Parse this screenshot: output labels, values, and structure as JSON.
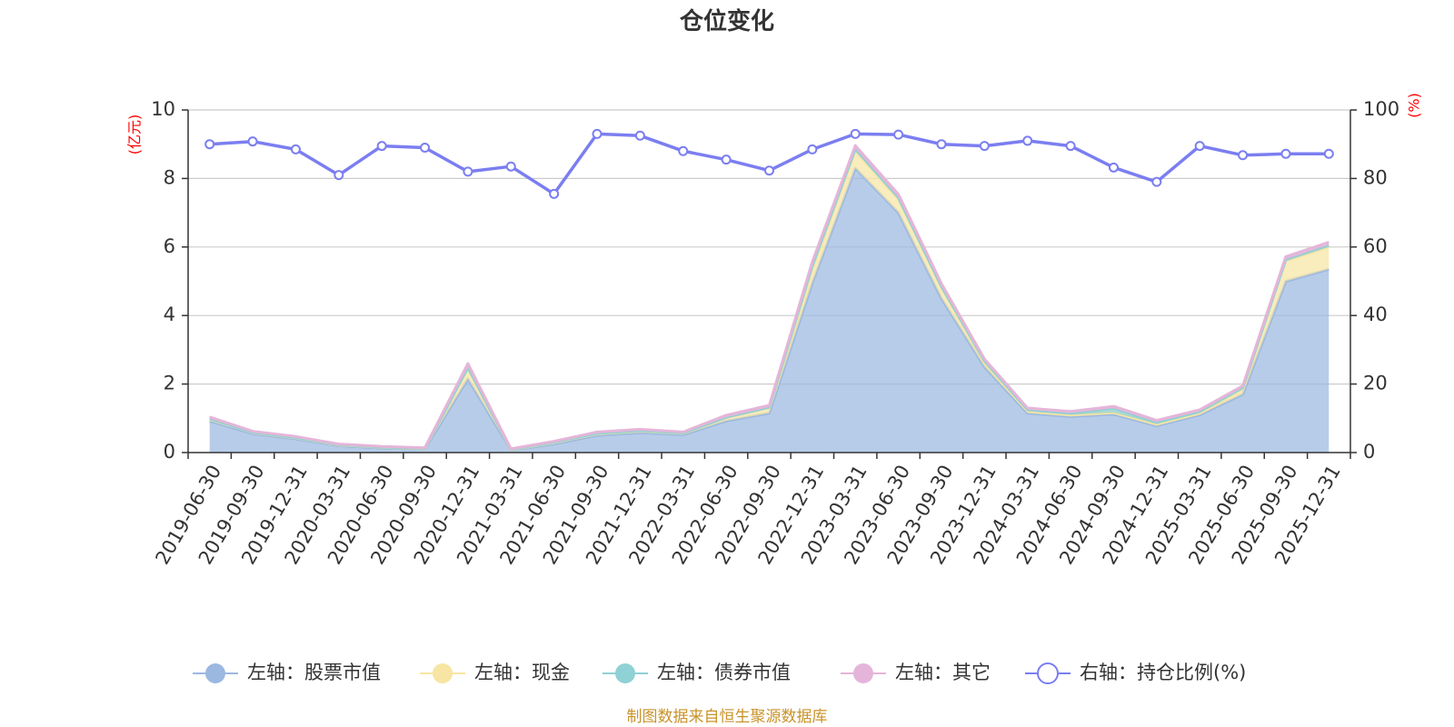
{
  "chart_data": {
    "type": "area",
    "title": "仓位变化",
    "left_axis_unit": "(亿元)",
    "right_axis_unit": "(%)",
    "ylim_left": [
      0,
      10
    ],
    "yticks_left": [
      0,
      2,
      4,
      6,
      8,
      10
    ],
    "ylim_right": [
      0,
      100
    ],
    "yticks_right": [
      0,
      20,
      40,
      60,
      80,
      100
    ],
    "grid": true,
    "legend_position": "bottom",
    "categories": [
      "2019-06-30",
      "2019-09-30",
      "2019-12-31",
      "2020-03-31",
      "2020-06-30",
      "2020-09-30",
      "2020-12-31",
      "2021-03-31",
      "2021-06-30",
      "2021-09-30",
      "2021-12-31",
      "2022-03-31",
      "2022-06-30",
      "2022-09-30",
      "2022-12-31",
      "2023-03-31",
      "2023-06-30",
      "2023-09-30",
      "2023-12-31",
      "2024-03-31",
      "2024-06-30",
      "2024-09-30",
      "2024-12-31",
      "2025-03-31",
      "2025-06-30",
      "2025-09-30",
      "2025-12-31"
    ],
    "series": [
      {
        "name": "左轴：股票市值",
        "axis": "left",
        "stack": true,
        "color": "#9bb8e0",
        "values": [
          0.92,
          0.55,
          0.4,
          0.2,
          0.13,
          0.1,
          2.15,
          0.07,
          0.25,
          0.5,
          0.58,
          0.52,
          0.92,
          1.15,
          4.95,
          8.3,
          7.0,
          4.5,
          2.5,
          1.15,
          1.05,
          1.12,
          0.78,
          1.1,
          1.7,
          5.0,
          5.35
        ]
      },
      {
        "name": "左轴：现金",
        "axis": "left",
        "stack": true,
        "color": "#f7e5a3",
        "values": [
          0.06,
          0.03,
          0.03,
          0.02,
          0.02,
          0.01,
          0.3,
          0.01,
          0.04,
          0.05,
          0.05,
          0.04,
          0.1,
          0.15,
          0.4,
          0.5,
          0.4,
          0.3,
          0.12,
          0.06,
          0.05,
          0.05,
          0.05,
          0.05,
          0.15,
          0.6,
          0.65
        ]
      },
      {
        "name": "左轴：债券市值",
        "axis": "left",
        "stack": true,
        "color": "#8fd1d4",
        "values": [
          0.01,
          0.01,
          0.01,
          0.01,
          0.01,
          0.01,
          0.03,
          0.01,
          0.01,
          0.01,
          0.01,
          0.01,
          0.01,
          0.02,
          0.1,
          0.06,
          0.04,
          0.05,
          0.05,
          0.04,
          0.05,
          0.12,
          0.06,
          0.05,
          0.04,
          0.03,
          0.05
        ]
      },
      {
        "name": "左轴：其它",
        "axis": "left",
        "stack": true,
        "color": "#e5b5d9",
        "values": [
          0.05,
          0.03,
          0.03,
          0.02,
          0.02,
          0.02,
          0.12,
          0.02,
          0.03,
          0.04,
          0.04,
          0.03,
          0.06,
          0.06,
          0.12,
          0.1,
          0.1,
          0.08,
          0.06,
          0.05,
          0.05,
          0.06,
          0.05,
          0.05,
          0.06,
          0.09,
          0.09
        ]
      },
      {
        "name": "右轴：持仓比例(%)",
        "axis": "right",
        "type": "line",
        "color": "#7b7ef0",
        "values": [
          90,
          90.8,
          88.5,
          81,
          89.5,
          89,
          82,
          83.5,
          75.5,
          93,
          92.5,
          88,
          85.5,
          82.3,
          88.5,
          93,
          92.8,
          90,
          89.5,
          91,
          89.5,
          83.2,
          79,
          89.5,
          86.8,
          87.2,
          87.2
        ]
      }
    ]
  },
  "source_text": "制图数据来自恒生聚源数据库"
}
